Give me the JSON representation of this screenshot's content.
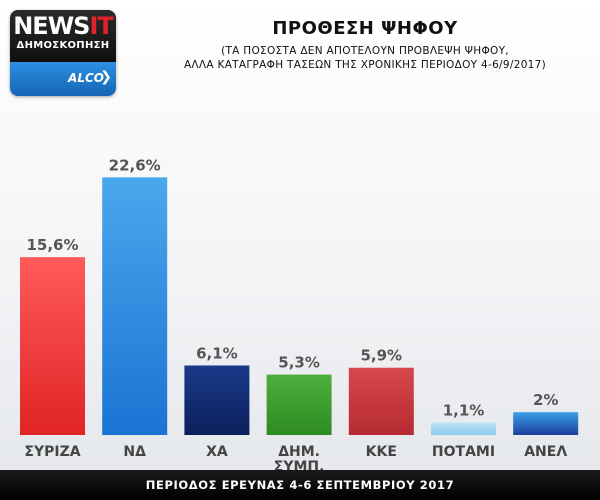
{
  "logo": {
    "brand_news": "NEWS",
    "brand_it": "IT",
    "subtitle": "ΔΗΜΟΣΚΟΠΗΣΗ",
    "partner": "ALCO",
    "chevron": "❯"
  },
  "header": {
    "title": "ΠΡΟΘΕΣΗ ΨΗΦΟΥ",
    "subtitle_line1": "(ΤΑ ΠΟΣΟΣΤΑ ΔΕΝ ΑΠΟΤΕΛΟΥΝ ΠΡΟΒΛΕΨΗ ΨΗΦΟΥ,",
    "subtitle_line2": "ΑΛΛΑ ΚΑΤΑΓΡΑΦΗ ΤΑΣΕΩΝ ΤΗΣ ΧΡΟΝΙΚΗΣ ΠΕΡΙΟΔΟΥ 4-6/9/2017)"
  },
  "footer": {
    "text": "ΠΕΡΙΟΔΟΣ ΕΡΕΥΝΑΣ 4-6 ΣΕΠΤΕΜΒΡΙΟΥ 2017"
  },
  "chart_data": {
    "type": "bar",
    "categories": [
      "ΣΥΡΙΖΑ",
      "ΝΔ",
      "ΧΑ",
      "ΔΗΜ. ΣΥΜΠ.",
      "ΚΚΕ",
      "ΠΟΤΑΜΙ",
      "ΑΝΕΛ"
    ],
    "category_lines": [
      [
        "ΣΥΡΙΖΑ"
      ],
      [
        "ΝΔ"
      ],
      [
        "ΧΑ"
      ],
      [
        "ΔΗΜ.",
        "ΣΥΜΠ."
      ],
      [
        "ΚΚΕ"
      ],
      [
        "ΠΟΤΑΜΙ"
      ],
      [
        "ΑΝΕΛ"
      ]
    ],
    "values": [
      15.6,
      22.6,
      6.1,
      5.3,
      5.9,
      1.1,
      2
    ],
    "value_labels": [
      "15,6%",
      "22,6%",
      "6,1%",
      "5,3%",
      "5,9%",
      "1,1%",
      "2%"
    ],
    "colors": [
      [
        "#ff5a5a",
        "#e02424"
      ],
      [
        "#4aa8ec",
        "#1a74d4"
      ],
      [
        "#1b3a8a",
        "#0b1f5c"
      ],
      [
        "#4caf3c",
        "#2e8b22"
      ],
      [
        "#d8474e",
        "#b52a31"
      ],
      [
        "#bfe4f7",
        "#8cc9ee"
      ],
      [
        "#3aa0e8",
        "#1c3f9c"
      ]
    ],
    "title": "ΠΡΟΘΕΣΗ ΨΗΦΟΥ",
    "xlabel": "",
    "ylabel": "",
    "ylim": [
      0,
      25
    ],
    "grid": false
  }
}
